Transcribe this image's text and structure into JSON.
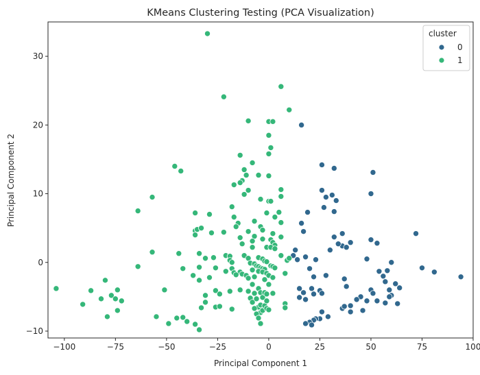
{
  "chart_data": {
    "type": "scatter",
    "title": "KMeans Clustering Testing (PCA Visualization)",
    "xlabel": "Principal Component 1",
    "ylabel": "Principal Component 2",
    "xlim": [
      -108,
      100
    ],
    "ylim": [
      -11,
      35
    ],
    "xticks": [
      -100,
      -75,
      -50,
      -25,
      0,
      25,
      50,
      75,
      100
    ],
    "yticks": [
      -10,
      0,
      10,
      20,
      30
    ],
    "xtick_labels": [
      "−100",
      "−75",
      "−50",
      "−25",
      "0",
      "25",
      "50",
      "75",
      "100"
    ],
    "ytick_labels": [
      "−10",
      "0",
      "10",
      "20",
      "30"
    ],
    "grid": false,
    "legend": {
      "title": "cluster",
      "position": "top-right",
      "entries": [
        "0",
        "1"
      ]
    },
    "series": [
      {
        "name": "0",
        "color": "#31688e",
        "points": [
          [
            16,
            20
          ],
          [
            26,
            14.2
          ],
          [
            32,
            13.7
          ],
          [
            51,
            13.1
          ],
          [
            26,
            10.5
          ],
          [
            28,
            9.5
          ],
          [
            31,
            9.8
          ],
          [
            33,
            9.0
          ],
          [
            50,
            10
          ],
          [
            19,
            7.3
          ],
          [
            27,
            8
          ],
          [
            32,
            7.4
          ],
          [
            16,
            5.7
          ],
          [
            17,
            4.5
          ],
          [
            36,
            4.2
          ],
          [
            72,
            4.2
          ],
          [
            32,
            3.7
          ],
          [
            50,
            3.3
          ],
          [
            53,
            2.8
          ],
          [
            36,
            2.4
          ],
          [
            30,
            1.8
          ],
          [
            34,
            2.7
          ],
          [
            38,
            2.2
          ],
          [
            40,
            2.9
          ],
          [
            23,
            0.4
          ],
          [
            12,
            1
          ],
          [
            14,
            0.4
          ],
          [
            13,
            1.8
          ],
          [
            18,
            0.8
          ],
          [
            20,
            -0.9
          ],
          [
            28,
            -1.9
          ],
          [
            22,
            -2.1
          ],
          [
            48,
            0.5
          ],
          [
            54,
            -1.3
          ],
          [
            58,
            -1.2
          ],
          [
            60,
            0
          ],
          [
            75,
            -0.8
          ],
          [
            81,
            -1.4
          ],
          [
            94,
            -2.1
          ],
          [
            37,
            -2.4
          ],
          [
            56,
            -2
          ],
          [
            57,
            -2.8
          ],
          [
            59,
            -4
          ],
          [
            60,
            -4.8
          ],
          [
            62,
            -3.1
          ],
          [
            64,
            -3.7
          ],
          [
            59,
            -5
          ],
          [
            48,
            -5.6
          ],
          [
            46,
            -7
          ],
          [
            53,
            -5.6
          ],
          [
            57,
            -5.9
          ],
          [
            63,
            -6
          ],
          [
            50,
            -4
          ],
          [
            51,
            -4.5
          ],
          [
            45,
            -5
          ],
          [
            43,
            -5.4
          ],
          [
            40,
            -6.3
          ],
          [
            36,
            -6.7
          ],
          [
            37,
            -6.4
          ],
          [
            40,
            -7.2
          ],
          [
            38,
            -3.5
          ],
          [
            21,
            -3.8
          ],
          [
            22,
            -4.6
          ],
          [
            25,
            -4.1
          ],
          [
            26,
            -4.5
          ],
          [
            15,
            -3.8
          ],
          [
            15,
            -5.1
          ],
          [
            17,
            -4.4
          ],
          [
            18,
            -5.4
          ],
          [
            26,
            -7.2
          ],
          [
            29,
            -7.9
          ],
          [
            25,
            -8.2
          ],
          [
            23,
            -8.2
          ],
          [
            22,
            -8.4
          ],
          [
            20,
            -8.7
          ],
          [
            18,
            -8.9
          ],
          [
            21,
            -9.1
          ]
        ]
      },
      {
        "name": "1",
        "color": "#35b779",
        "points": [
          [
            -30,
            33.3
          ],
          [
            6,
            25.6
          ],
          [
            -22,
            24.1
          ],
          [
            10,
            22.2
          ],
          [
            -10,
            20.6
          ],
          [
            0,
            20.5
          ],
          [
            2,
            20.5
          ],
          [
            0,
            18.5
          ],
          [
            1,
            16.7
          ],
          [
            0,
            15.8
          ],
          [
            -14,
            15.6
          ],
          [
            -8,
            14.5
          ],
          [
            -12,
            13.5
          ],
          [
            -46,
            14
          ],
          [
            -43,
            13.3
          ],
          [
            -5,
            12.7
          ],
          [
            0,
            12.6
          ],
          [
            -11,
            12.7
          ],
          [
            -13,
            11.9
          ],
          [
            -14,
            11.6
          ],
          [
            -17,
            11.3
          ],
          [
            -10,
            10.5
          ],
          [
            -12,
            9.9
          ],
          [
            6,
            10.6
          ],
          [
            6,
            9.6
          ],
          [
            -4,
            9.2
          ],
          [
            0,
            8.9
          ],
          [
            1,
            8.9
          ],
          [
            -57,
            9.5
          ],
          [
            -64,
            7.5
          ],
          [
            -18,
            8.1
          ],
          [
            -36,
            7.2
          ],
          [
            -29,
            7
          ],
          [
            -22,
            4.4
          ],
          [
            -28,
            4.3
          ],
          [
            -17,
            6.6
          ],
          [
            -15,
            5.7
          ],
          [
            -16,
            5.2
          ],
          [
            -1,
            7.2
          ],
          [
            5,
            7.3
          ],
          [
            3,
            6.6
          ],
          [
            6,
            5.8
          ],
          [
            -7,
            6
          ],
          [
            -4,
            5.2
          ],
          [
            -3,
            4.7
          ],
          [
            2,
            4.2
          ],
          [
            6,
            3.7
          ],
          [
            -10,
            4.5
          ],
          [
            -36,
            4.6
          ],
          [
            -35,
            4.8
          ],
          [
            -33,
            5
          ],
          [
            -36,
            4
          ],
          [
            -14,
            3.6
          ],
          [
            -7,
            3.8
          ],
          [
            -3,
            3.4
          ],
          [
            1,
            3.3
          ],
          [
            2,
            2.9
          ],
          [
            3,
            2.5
          ],
          [
            -13,
            2.7
          ],
          [
            -8,
            3.1
          ],
          [
            -8,
            2.2
          ],
          [
            -1,
            2.2
          ],
          [
            1,
            2.2
          ],
          [
            3,
            2
          ],
          [
            -34,
            1.3
          ],
          [
            -44,
            1.3
          ],
          [
            -57,
            1.5
          ],
          [
            -21,
            1
          ],
          [
            -19,
            0.9
          ],
          [
            -12,
            1
          ],
          [
            -10,
            0.6
          ],
          [
            -5,
            0.7
          ],
          [
            -3,
            0.5
          ],
          [
            -2,
            0.2
          ],
          [
            -1,
            0.1
          ],
          [
            6,
            1
          ],
          [
            9,
            0.3
          ],
          [
            10,
            0.6
          ],
          [
            -31,
            0.6
          ],
          [
            -27,
            0.7
          ],
          [
            -19,
            0.3
          ],
          [
            -18,
            0
          ],
          [
            -9,
            -0.1
          ],
          [
            -7,
            -0.2
          ],
          [
            -6,
            -0.5
          ],
          [
            -5,
            -0.6
          ],
          [
            -4,
            -0.8
          ],
          [
            -3,
            -0.9
          ],
          [
            -2,
            -1
          ],
          [
            1,
            -0.5
          ],
          [
            2,
            -0.6
          ],
          [
            3,
            -0.8
          ],
          [
            -64,
            -0.6
          ],
          [
            -42,
            -0.9
          ],
          [
            -34,
            -0.7
          ],
          [
            -21,
            -1.3
          ],
          [
            -14,
            -1.4
          ],
          [
            -13,
            -1.7
          ],
          [
            -11,
            -1.9
          ],
          [
            -8,
            -1.1
          ],
          [
            -5,
            -1.3
          ],
          [
            -3,
            -1.4
          ],
          [
            -1,
            -1.6
          ],
          [
            0,
            -1.9
          ],
          [
            2,
            -2.2
          ],
          [
            8,
            -1.6
          ],
          [
            -26,
            -0.8
          ],
          [
            -18,
            -0.9
          ],
          [
            -17,
            -1.5
          ],
          [
            -16,
            -1.8
          ],
          [
            -10,
            -2.3
          ],
          [
            -7,
            -2.1
          ],
          [
            -2,
            -2.5
          ],
          [
            -37,
            -1.9
          ],
          [
            -34,
            -2.6
          ],
          [
            -29,
            -2.2
          ],
          [
            -80,
            -2.6
          ],
          [
            -87,
            -4.1
          ],
          [
            -77,
            -4.8
          ],
          [
            -74,
            -4
          ],
          [
            -75,
            -5.3
          ],
          [
            -72,
            -5.6
          ],
          [
            -82,
            -5.3
          ],
          [
            -91,
            -6.1
          ],
          [
            -104,
            -3.8
          ],
          [
            -74,
            -7
          ],
          [
            -79,
            -7.9
          ],
          [
            -51,
            -4
          ],
          [
            -55,
            -7.9
          ],
          [
            -45,
            -8.1
          ],
          [
            -40,
            -8.6
          ],
          [
            -36,
            -9
          ],
          [
            -42,
            -8
          ],
          [
            -49,
            -8.9
          ],
          [
            -34,
            -9.8
          ],
          [
            -26,
            -4.1
          ],
          [
            -24,
            -4.6
          ],
          [
            -26,
            -6.5
          ],
          [
            -24,
            -6.4
          ],
          [
            -31,
            -4.8
          ],
          [
            -31,
            -5.8
          ],
          [
            -33,
            -6.6
          ],
          [
            -18,
            -6.8
          ],
          [
            -19,
            -4.2
          ],
          [
            -14,
            -4
          ],
          [
            -10,
            -4.2
          ],
          [
            -8,
            -3.2
          ],
          [
            -7,
            -4.5
          ],
          [
            -5,
            -3.8
          ],
          [
            -4,
            -4.4
          ],
          [
            -3,
            -5.1
          ],
          [
            -2,
            -4.4
          ],
          [
            -1,
            -4.6
          ],
          [
            0,
            -3.2
          ],
          [
            2,
            -4.5
          ],
          [
            -9,
            -5.2
          ],
          [
            -8,
            -5.8
          ],
          [
            -6,
            -5.3
          ],
          [
            -5,
            -6.5
          ],
          [
            -4,
            -6.2
          ],
          [
            -4,
            -7.3
          ],
          [
            -3,
            -7
          ],
          [
            -2,
            -6.3
          ],
          [
            -1,
            -6.7
          ],
          [
            -1,
            -5.6
          ],
          [
            0,
            -6.9
          ],
          [
            -6,
            -7.5
          ],
          [
            -5,
            -8.1
          ],
          [
            -4,
            -8.9
          ],
          [
            -7,
            -6.7
          ],
          [
            8,
            -6
          ],
          [
            8,
            -6.6
          ]
        ]
      }
    ]
  }
}
